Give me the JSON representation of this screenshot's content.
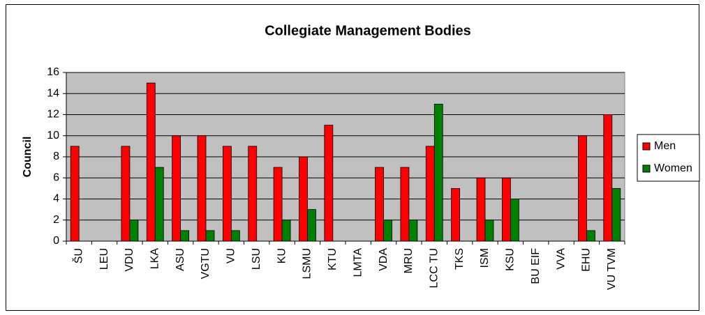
{
  "chart_data": {
    "type": "bar",
    "title": "Collegiate Management Bodies",
    "y_label": "Council",
    "categories": [
      "ŠU",
      "LEU",
      "VDU",
      "LKA",
      "ASU",
      "VGTU",
      "VU",
      "LSU",
      "KU",
      "LSMU",
      "KTU",
      "LMTA",
      "VDA",
      "MRU",
      "LCC TU",
      "TKS",
      "ISM",
      "KSU",
      "BU EIF",
      "VVA",
      "EHU",
      "VU TVM"
    ],
    "series": [
      {
        "name": "Men",
        "color": "#ff0000",
        "values": [
          9,
          0,
          9,
          15,
          10,
          10,
          9,
          9,
          7,
          8,
          11,
          0,
          7,
          7,
          9,
          5,
          6,
          6,
          0,
          0,
          10,
          12
        ]
      },
      {
        "name": "Women",
        "color": "#008000",
        "values": [
          0,
          0,
          2,
          7,
          1,
          1,
          1,
          0,
          2,
          3,
          0,
          0,
          2,
          2,
          13,
          0,
          2,
          4,
          0,
          0,
          1,
          5
        ]
      }
    ],
    "ylim": [
      0,
      16
    ],
    "yticks": [
      0,
      2,
      4,
      6,
      8,
      10,
      12,
      14,
      16
    ],
    "grid": true,
    "legend": "right"
  }
}
